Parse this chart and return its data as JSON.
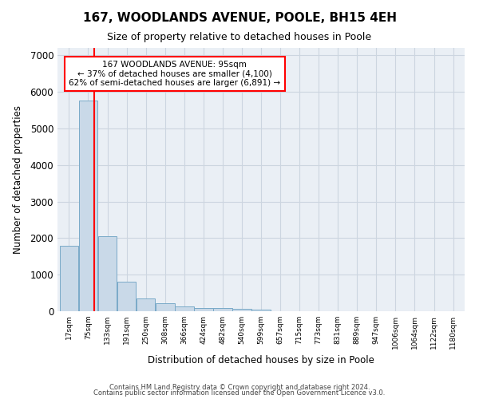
{
  "title": "167, WOODLANDS AVENUE, POOLE, BH15 4EH",
  "subtitle": "Size of property relative to detached houses in Poole",
  "xlabel": "Distribution of detached houses by size in Poole",
  "ylabel": "Number of detached properties",
  "footnote1": "Contains HM Land Registry data © Crown copyright and database right 2024.",
  "footnote2": "Contains public sector information licensed under the Open Government Licence v3.0.",
  "bar_labels": [
    "17sqm",
    "75sqm",
    "133sqm",
    "191sqm",
    "250sqm",
    "308sqm",
    "366sqm",
    "424sqm",
    "482sqm",
    "540sqm",
    "599sqm",
    "657sqm",
    "715sqm",
    "773sqm",
    "831sqm",
    "889sqm",
    "947sqm",
    "1006sqm",
    "1064sqm",
    "1122sqm",
    "1180sqm"
  ],
  "bar_values": [
    1800,
    5750,
    2050,
    800,
    350,
    220,
    130,
    90,
    90,
    70,
    50,
    0,
    0,
    0,
    0,
    0,
    0,
    0,
    0,
    0,
    0
  ],
  "bar_color": "#c9d9e8",
  "bar_edge_color": "#7aaac8",
  "property_bar_index": 1,
  "property_line_label": "167 WOODLANDS AVENUE: 95sqm",
  "annotation_line1": "← 37% of detached houses are smaller (4,100)",
  "annotation_line2": "62% of semi-detached houses are larger (6,891) →",
  "annotation_box_color": "red",
  "property_line_color": "red",
  "ylim": [
    0,
    7200
  ],
  "yticks": [
    0,
    1000,
    2000,
    3000,
    4000,
    5000,
    6000,
    7000
  ],
  "grid_color": "#ccd5e0",
  "background_color": "#eaeff5",
  "title_fontsize": 11,
  "subtitle_fontsize": 9
}
